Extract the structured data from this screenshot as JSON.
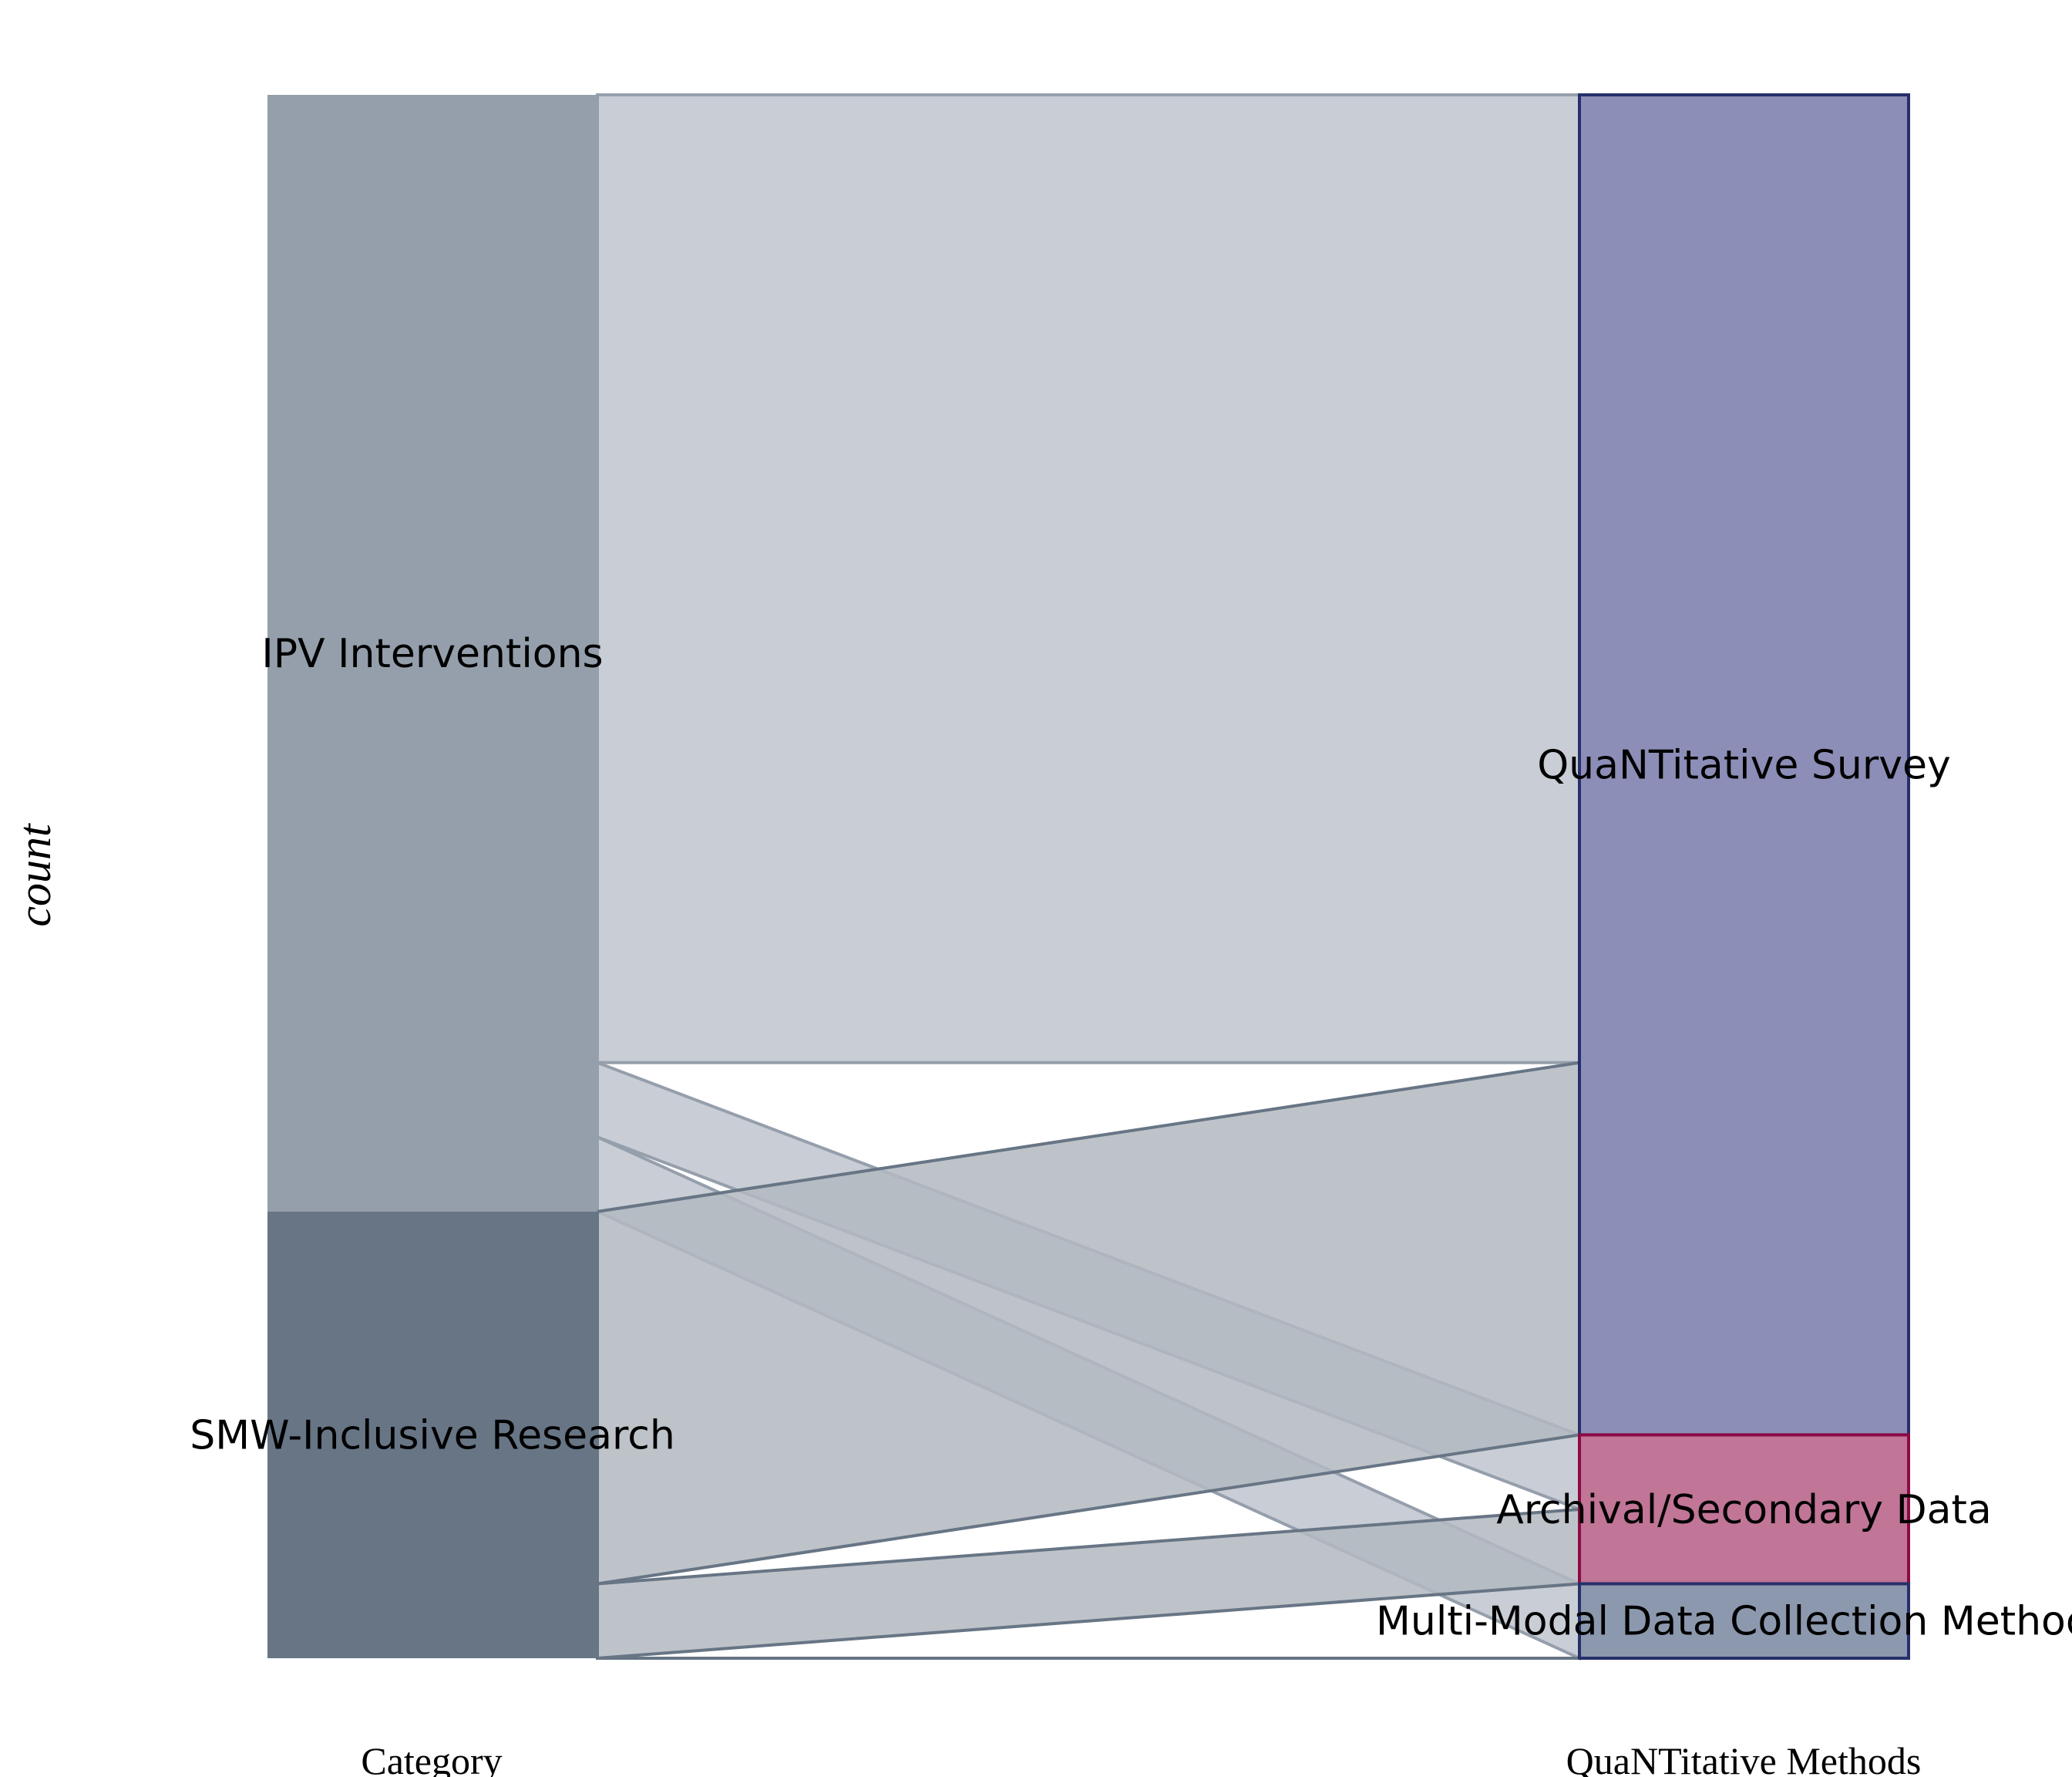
{
  "chart_data": {
    "type": "alluvial",
    "ylabel": "count",
    "axes": [
      "Category",
      "QuaNTitative Methods"
    ],
    "left_nodes": [
      {
        "name": "IPV Interventions",
        "color": "#959fac"
      },
      {
        "name": "SMW-Inclusive Research",
        "color": "#677585"
      }
    ],
    "right_nodes": [
      {
        "name": "QuaNTitative Survey",
        "fill": "#8d8eb7",
        "stroke": "#25306b"
      },
      {
        "name": "Archival/Secondary Data",
        "fill": "#c17597",
        "stroke": "#8c0a45"
      },
      {
        "name": "Multi-Modal Data Collection Methods",
        "fill": "#8c98ad",
        "stroke": "#25306b"
      }
    ],
    "flows": [
      {
        "from": "IPV Interventions",
        "to": "QuaNTitative Survey",
        "value": 13
      },
      {
        "from": "IPV Interventions",
        "to": "Archival/Secondary Data",
        "value": 1
      },
      {
        "from": "IPV Interventions",
        "to": "Multi-Modal Data Collection Methods",
        "value": 1
      },
      {
        "from": "SMW-Inclusive Research",
        "to": "QuaNTitative Survey",
        "value": 5
      },
      {
        "from": "SMW-Inclusive Research",
        "to": "Archival/Secondary Data",
        "value": 1
      },
      {
        "from": "SMW-Inclusive Research",
        "to": "Multi-Modal Data Collection Methods",
        "value": 0
      }
    ],
    "colors": {
      "flow_ipv_fill": "#c9cdd5",
      "flow_ipv_stroke": "#959fac",
      "flow_smw_fill": "#b3b9c1",
      "flow_smw_stroke": "#677585"
    }
  }
}
